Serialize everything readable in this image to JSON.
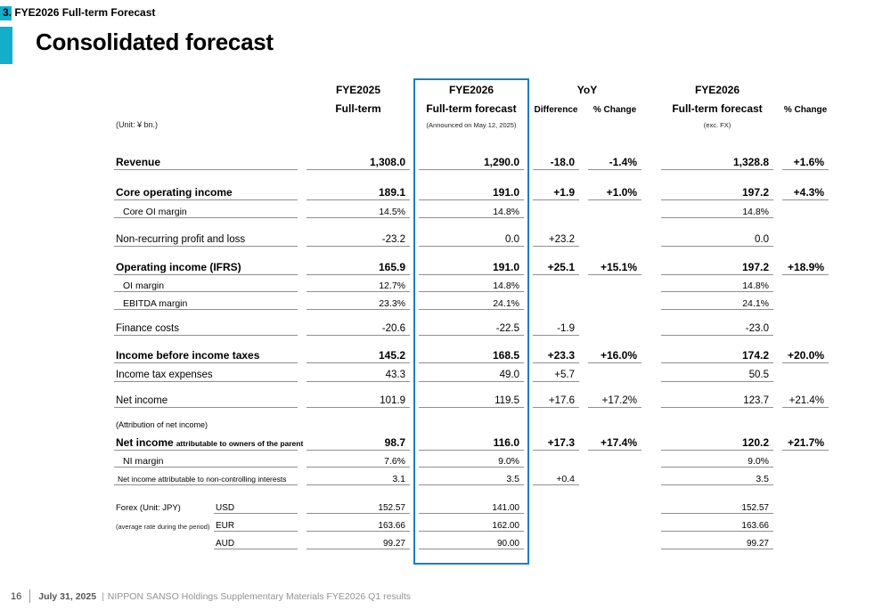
{
  "colors": {
    "accent_teal": "#14aecd",
    "highlight_blue": "#1b7ec2"
  },
  "slide": {
    "section_number": "3.",
    "section_title": "FYE2026 Full-term Forecast",
    "section_label": "3. FYE2026 Full-term Forecast",
    "title": "Consolidated forecast"
  },
  "table": {
    "unit_note": "(Unit: ¥ bn.)",
    "headers": {
      "fye2025": "FYE2025",
      "full_term": "Full-term",
      "fye2026": "FYE2026",
      "full_term_forecast": "Full-term forecast",
      "announced_note": "(Announced on May 12, 2025)",
      "yoy": "YoY",
      "difference": "Difference",
      "pct_change": "% Change",
      "fye2026_right": "FYE2026",
      "full_term_forecast_right": "Full-term forecast",
      "excfx_note": "(exc. FX)",
      "pct_change_right": "% Change"
    },
    "rows": [
      {
        "style": "major",
        "mt": 24,
        "label": "Revenue",
        "v1": "1,308.0",
        "v2": "1,290.0",
        "diff": "-18.0",
        "pct": "-1.4%",
        "v3": "1,328.8",
        "pct2": "+1.6%"
      },
      {
        "style": "major",
        "mt": 12,
        "label": "Core operating income",
        "v1": "189.1",
        "v2": "191.0",
        "diff": "+1.9",
        "pct": "+1.0%",
        "v3": "197.2",
        "pct2": "+4.3%"
      },
      {
        "style": "sub",
        "mt": 3,
        "label": "Core OI margin",
        "v1": "14.5%",
        "v2": "14.8%",
        "diff": "",
        "pct": "",
        "v3": "14.8%",
        "pct2": ""
      },
      {
        "style": "normal",
        "mt": 11,
        "label": "Non-recurring profit and loss",
        "v1": "-23.2",
        "v2": "0.0",
        "diff": "+23.2",
        "pct": "",
        "v3": "0.0",
        "pct2": ""
      },
      {
        "style": "major",
        "mt": 10,
        "label": "Operating income (IFRS)",
        "v1": "165.9",
        "v2": "191.0",
        "diff": "+25.1",
        "pct": "+15.1%",
        "v3": "197.2",
        "pct2": "+18.9%"
      },
      {
        "style": "sub",
        "mt": 2,
        "label": "OI margin",
        "v1": "12.7%",
        "v2": "14.8%",
        "diff": "",
        "pct": "",
        "v3": "14.8%",
        "pct2": ""
      },
      {
        "style": "sub",
        "mt": 3,
        "label": "EBITDA margin",
        "v1": "23.3%",
        "v2": "24.1%",
        "diff": "",
        "pct": "",
        "v3": "24.1%",
        "pct2": ""
      },
      {
        "style": "normal",
        "mt": 8,
        "label": "Finance costs",
        "v1": "-20.6",
        "v2": "-22.5",
        "diff": "-1.9",
        "pct": "",
        "v3": "-23.0",
        "pct2": ""
      },
      {
        "style": "major",
        "mt": 9,
        "label": "Income before income taxes",
        "v1": "145.2",
        "v2": "168.5",
        "diff": "+23.3",
        "pct": "+16.0%",
        "v3": "174.2",
        "pct2": "+20.0%"
      },
      {
        "style": "normal",
        "mt": 0,
        "label": "Income tax expenses",
        "v1": "43.3",
        "v2": "49.0",
        "diff": "+5.7",
        "pct": "",
        "v3": "50.5",
        "pct2": ""
      },
      {
        "style": "normal",
        "mt": 8,
        "label": "Net income",
        "v1": "101.9",
        "v2": "119.5",
        "diff": "+17.6",
        "pct": "+17.2%",
        "v3": "123.7",
        "pct2": "+21.4%"
      },
      {
        "style": "note",
        "mt": 10,
        "label": "(Attribution of net income)"
      },
      {
        "style": "major-small",
        "mt": 2,
        "label": "Net income",
        "label_small": "attributable to owners of the parent",
        "v1": "98.7",
        "v2": "116.0",
        "diff": "+17.3",
        "pct": "+17.4%",
        "v3": "120.2",
        "pct2": "+21.7%"
      },
      {
        "style": "sub",
        "mt": 2,
        "label": "NI margin",
        "v1": "7.6%",
        "v2": "9.0%",
        "diff": "",
        "pct": "",
        "v3": "9.0%",
        "pct2": ""
      },
      {
        "style": "sub",
        "mt": 3,
        "small": true,
        "label": "Net income attributable to non-controlling interests",
        "v1": "3.1",
        "v2": "3.5",
        "diff": "+0.4",
        "pct": "",
        "v3": "3.5",
        "pct2": ""
      },
      {
        "style": "forex",
        "mt": 15,
        "flabel": "Forex (Unit: JPY)",
        "currency": "USD",
        "v1": "152.57",
        "v2": "141.00",
        "diff": "",
        "pct": "",
        "v3": "152.57",
        "pct2": ""
      },
      {
        "style": "forex",
        "mt": 3,
        "flabel": "(average rate during the period)",
        "flabel_small": true,
        "currency": "EUR",
        "v1": "163.66",
        "v2": "162.00",
        "diff": "",
        "pct": "",
        "v3": "163.66",
        "pct2": ""
      },
      {
        "style": "forex",
        "mt": 3,
        "flabel": "",
        "currency": "AUD",
        "v1": "99.27",
        "v2": "90.00",
        "diff": "",
        "pct": "",
        "v3": "99.27",
        "pct2": ""
      }
    ]
  },
  "footer": {
    "page_number": "16",
    "date": "July 31, 2025",
    "separator": "|",
    "text": "NIPPON SANSO Holdings Supplementary Materials FYE2026 Q1 results"
  }
}
